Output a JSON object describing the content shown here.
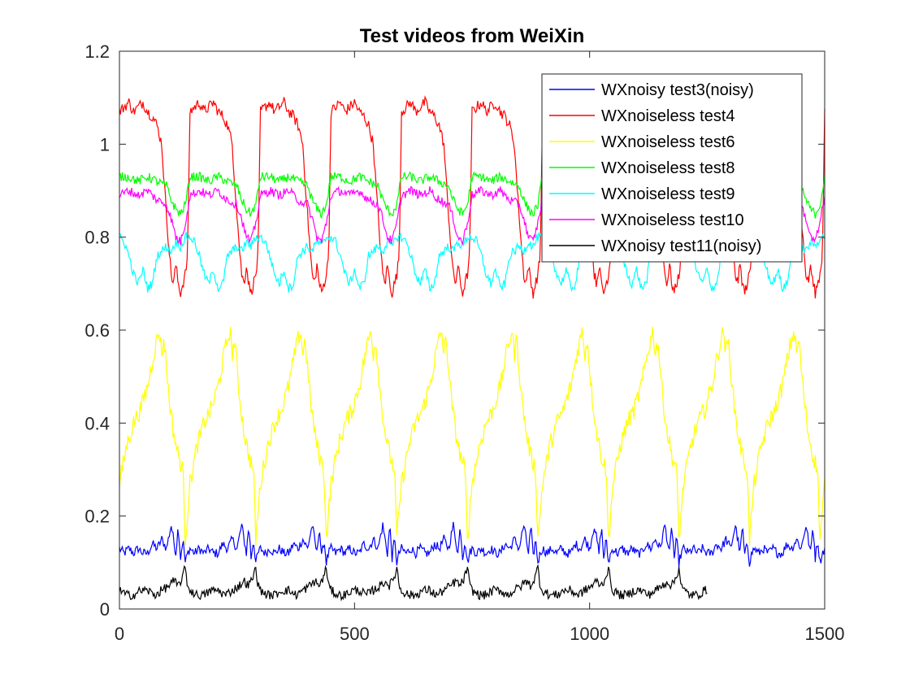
{
  "chart_data": {
    "type": "line",
    "title": "Test videos from WeiXin",
    "xlabel": "",
    "ylabel": "",
    "xlim": [
      0,
      1500
    ],
    "ylim": [
      0,
      1.2
    ],
    "xticks": [
      0,
      500,
      1000,
      1500
    ],
    "yticks": [
      0,
      0.2,
      0.4,
      0.6,
      0.8,
      1,
      1.2
    ],
    "xtick_labels": [
      "0",
      "500",
      "1000",
      "1500"
    ],
    "ytick_labels": [
      "0",
      "0.2",
      "0.4",
      "0.6",
      "0.8",
      "1",
      "1.2"
    ],
    "grid": false,
    "legend_position": "top-right",
    "period": 150,
    "series": [
      {
        "name": "WXnoisy test3(noisy)",
        "color": "#0000ff",
        "x_end": 1500,
        "cycle_x": [
          0,
          10,
          20,
          30,
          40,
          50,
          60,
          70,
          80,
          90,
          100,
          110,
          120,
          125,
          130,
          135,
          140,
          145,
          150
        ],
        "cycle_y": [
          0.13,
          0.12,
          0.13,
          0.12,
          0.13,
          0.12,
          0.12,
          0.14,
          0.13,
          0.15,
          0.13,
          0.18,
          0.12,
          0.18,
          0.11,
          0.15,
          0.1,
          0.12,
          0.13
        ]
      },
      {
        "name": "WXnoiseless test4",
        "color": "#ff0000",
        "x_end": 1500,
        "cycle_x": [
          0,
          10,
          20,
          30,
          40,
          50,
          60,
          70,
          80,
          90,
          95,
          100,
          105,
          110,
          115,
          120,
          125,
          130,
          140,
          145,
          150
        ],
        "cycle_y": [
          1.07,
          1.08,
          1.09,
          1.07,
          1.08,
          1.09,
          1.07,
          1.06,
          1.04,
          1.0,
          0.92,
          0.85,
          0.78,
          0.72,
          0.7,
          0.74,
          0.7,
          0.68,
          0.72,
          0.76,
          1.07
        ]
      },
      {
        "name": "WXnoiseless test6",
        "color": "#ffff00",
        "x_end": 1500,
        "cycle_x": [
          0,
          15,
          30,
          45,
          60,
          75,
          85,
          90,
          95,
          105,
          115,
          125,
          135,
          140,
          150
        ],
        "cycle_y": [
          0.27,
          0.35,
          0.4,
          0.43,
          0.48,
          0.56,
          0.6,
          0.55,
          0.58,
          0.46,
          0.38,
          0.33,
          0.3,
          0.15,
          0.27
        ]
      },
      {
        "name": "WXnoiseless test8",
        "color": "#00ff00",
        "x_end": 1500,
        "cycle_x": [
          0,
          20,
          40,
          60,
          80,
          100,
          110,
          120,
          130,
          140,
          150
        ],
        "cycle_y": [
          0.93,
          0.93,
          0.92,
          0.93,
          0.92,
          0.91,
          0.88,
          0.86,
          0.85,
          0.87,
          0.93
        ]
      },
      {
        "name": "WXnoiseless test9",
        "color": "#00ffff",
        "x_end": 1500,
        "cycle_x": [
          0,
          10,
          20,
          30,
          40,
          50,
          60,
          70,
          80,
          90,
          100,
          110,
          120,
          130,
          140,
          150
        ],
        "cycle_y": [
          0.8,
          0.79,
          0.76,
          0.72,
          0.7,
          0.73,
          0.69,
          0.7,
          0.76,
          0.77,
          0.78,
          0.77,
          0.79,
          0.78,
          0.8,
          0.8
        ]
      },
      {
        "name": "WXnoiseless test10",
        "color": "#ff00ff",
        "x_end": 1500,
        "cycle_x": [
          0,
          20,
          40,
          60,
          80,
          100,
          110,
          120,
          130,
          140,
          150
        ],
        "cycle_y": [
          0.89,
          0.9,
          0.89,
          0.9,
          0.88,
          0.87,
          0.84,
          0.8,
          0.79,
          0.83,
          0.89
        ]
      },
      {
        "name": "WXnoisy test11(noisy)",
        "color": "#000000",
        "x_end": 1250,
        "cycle_x": [
          0,
          15,
          30,
          45,
          60,
          75,
          90,
          105,
          115,
          125,
          135,
          140,
          145,
          150
        ],
        "cycle_y": [
          0.04,
          0.03,
          0.03,
          0.04,
          0.04,
          0.03,
          0.04,
          0.05,
          0.06,
          0.05,
          0.07,
          0.09,
          0.05,
          0.04
        ]
      }
    ]
  }
}
